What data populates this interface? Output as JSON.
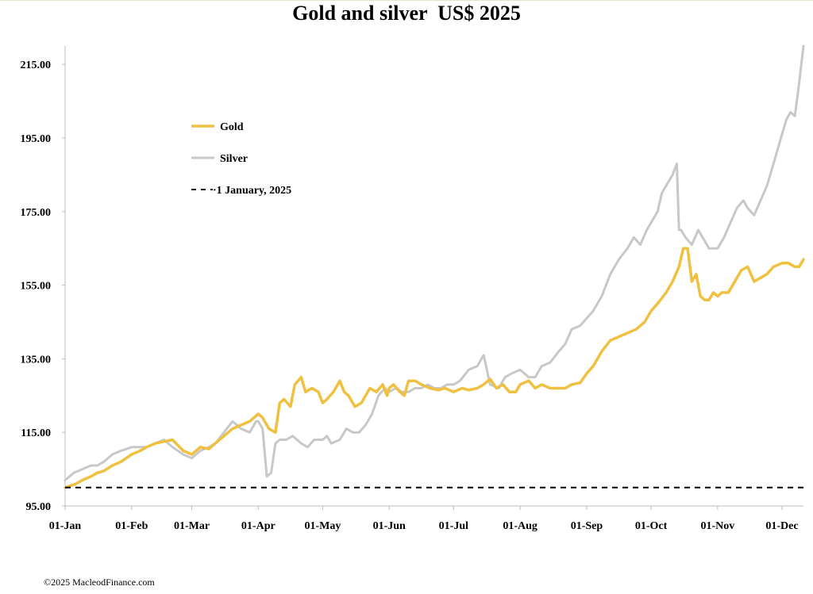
{
  "chart_data": {
    "type": "line",
    "title": "Gold and silver  US$ 2025",
    "xlabel": "",
    "ylabel": "",
    "ylim": [
      95,
      220
    ],
    "y_ticks": [
      "95.00",
      "115.00",
      "135.00",
      "155.00",
      "175.00",
      "195.00",
      "215.00"
    ],
    "y_tick_values": [
      95,
      115,
      135,
      155,
      175,
      195,
      215
    ],
    "x_ticks": [
      "01-Jan",
      "01-Feb",
      "01-Mar",
      "01-Apr",
      "01-May",
      "01-Jun",
      "01-Jul",
      "01-Aug",
      "01-Sep",
      "01-Oct",
      "01-Nov",
      "01-Dec"
    ],
    "x_tick_days": [
      0,
      31,
      59,
      90,
      120,
      151,
      181,
      212,
      243,
      273,
      304,
      334
    ],
    "x_max_day": 344,
    "legend_position": "upper-left",
    "series": [
      {
        "name": "Gold",
        "color": "#f0c040",
        "x": [
          0,
          5,
          8,
          12,
          15,
          18,
          22,
          26,
          31,
          35,
          38,
          42,
          46,
          50,
          55,
          59,
          63,
          67,
          70,
          74,
          78,
          82,
          86,
          90,
          92,
          95,
          98,
          100,
          102,
          105,
          107,
          110,
          112,
          115,
          118,
          120,
          122,
          125,
          128,
          130,
          132,
          135,
          138,
          140,
          142,
          145,
          148,
          150,
          151,
          153,
          156,
          158,
          160,
          163,
          166,
          170,
          174,
          177,
          181,
          185,
          188,
          192,
          195,
          198,
          201,
          204,
          207,
          210,
          212,
          216,
          219,
          222,
          226,
          230,
          233,
          236,
          240,
          243,
          246,
          250,
          254,
          258,
          262,
          266,
          270,
          273,
          276,
          280,
          283,
          286,
          288,
          290,
          292,
          294,
          296,
          298,
          300,
          302,
          304,
          306,
          309,
          312,
          315,
          318,
          321,
          324,
          327,
          330,
          334,
          337,
          340,
          342,
          344
        ],
        "y": [
          100,
          101,
          102,
          103,
          104,
          104.5,
          106,
          107,
          109,
          110,
          111,
          112,
          112.5,
          113,
          110,
          109,
          111,
          110.5,
          112,
          114,
          116,
          117,
          118,
          120,
          119,
          116,
          115,
          123,
          124,
          122,
          128,
          130,
          126,
          127,
          126,
          123,
          124,
          126,
          129,
          126,
          125,
          122,
          123,
          125,
          127,
          126,
          128,
          125,
          127,
          128,
          126,
          125,
          129,
          129,
          128,
          127,
          126.5,
          127,
          126,
          127,
          126.5,
          127,
          128,
          129.5,
          127,
          128,
          126,
          126,
          128,
          129,
          127,
          128,
          127,
          127,
          127,
          128,
          128.5,
          131,
          133,
          137,
          140,
          141,
          142,
          143,
          145,
          148,
          150,
          153,
          156,
          160,
          165,
          165,
          156,
          158,
          152,
          151,
          151,
          153,
          152,
          153,
          153,
          156,
          159,
          160,
          156,
          157,
          158,
          160,
          161,
          161,
          160,
          160,
          162
        ]
      },
      {
        "name": "Silver",
        "color": "#c8c8c8",
        "x": [
          0,
          4,
          8,
          12,
          15,
          18,
          22,
          26,
          31,
          35,
          38,
          42,
          46,
          50,
          55,
          59,
          63,
          67,
          70,
          74,
          78,
          82,
          86,
          89,
          90,
          92,
          94,
          96,
          98,
          100,
          103,
          106,
          110,
          113,
          116,
          120,
          122,
          124,
          128,
          131,
          134,
          137,
          140,
          143,
          146,
          149,
          151,
          154,
          157,
          160,
          163,
          166,
          169,
          172,
          175,
          178,
          181,
          184,
          188,
          192,
          195,
          198,
          202,
          205,
          208,
          212,
          216,
          219,
          222,
          226,
          230,
          233,
          236,
          240,
          243,
          246,
          250,
          254,
          258,
          262,
          265,
          268,
          271,
          273,
          276,
          278,
          280,
          283,
          285,
          286,
          287,
          289,
          292,
          295,
          298,
          300,
          302,
          304,
          307,
          310,
          313,
          316,
          318,
          321,
          324,
          327,
          330,
          333,
          336,
          338,
          340,
          342,
          344
        ],
        "y": [
          102,
          104,
          105,
          106,
          106,
          107,
          109,
          110,
          111,
          111,
          111,
          112,
          113,
          111,
          109,
          108,
          110,
          111,
          112,
          115,
          118,
          116,
          115,
          118,
          118,
          116,
          103,
          104,
          112,
          113,
          113,
          114,
          112,
          111,
          113,
          113,
          114,
          112,
          113,
          116,
          115,
          115,
          117,
          120,
          125,
          127,
          126,
          127,
          126,
          126,
          127,
          127,
          128,
          127,
          127,
          128,
          128,
          129,
          132,
          133,
          136,
          128,
          127,
          130,
          131,
          132,
          130,
          130,
          133,
          134,
          137,
          139,
          143,
          144,
          146,
          148,
          152,
          158,
          162,
          165,
          168,
          166,
          170,
          172,
          175,
          180,
          182,
          185,
          188,
          170,
          170,
          168,
          166,
          170,
          167,
          165,
          165,
          165,
          168,
          172,
          176,
          178,
          176,
          174,
          178,
          182,
          188,
          194,
          200,
          202,
          201,
          210,
          220
        ]
      },
      {
        "name": "1 January, 2025",
        "color": "#000000",
        "style": "dashed",
        "x": [
          0,
          344
        ],
        "y": [
          100,
          100
        ]
      }
    ]
  },
  "legend": {
    "gold_label": "Gold",
    "silver_label": "Silver",
    "baseline_label": "·1 January, 2025"
  },
  "footer": {
    "copyright": "©2025 MacleodFinance.com"
  }
}
